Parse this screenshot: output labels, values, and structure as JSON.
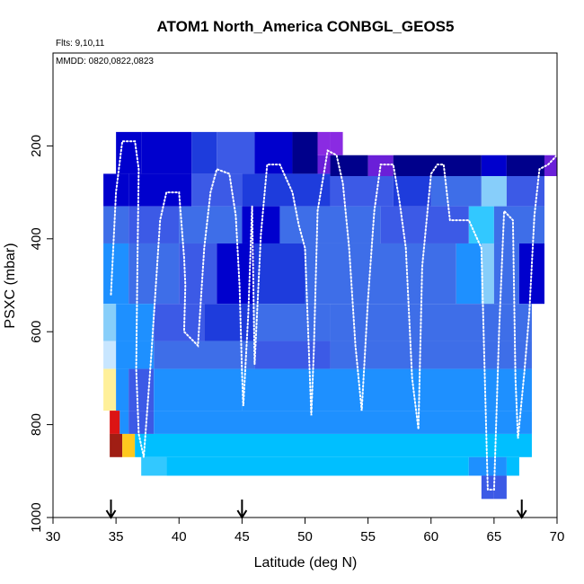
{
  "chart_data": {
    "type": "heatmap",
    "title": "ATOM1 North_America CONBGL_GEOS5",
    "flights_note": "Flts: 9,10,11",
    "dates_note": "MMDD: 0820,0822,0823",
    "xlabel": "Latitude (deg N)",
    "ylabel": "PSXC (mbar)",
    "xlim": [
      30,
      70
    ],
    "ylim": [
      1000,
      0
    ],
    "x_ticks": [
      30,
      35,
      40,
      45,
      50,
      55,
      60,
      65,
      70
    ],
    "y_ticks": [
      200,
      400,
      600,
      800,
      1000
    ],
    "x_tick_labels": [
      "30",
      "35",
      "40",
      "45",
      "50",
      "55",
      "60",
      "65",
      "70"
    ],
    "y_tick_labels": [
      "200",
      "400",
      "600",
      "800",
      "1000"
    ],
    "grid": false,
    "colors": {
      "very_dark_blue": "#00008b",
      "dark_blue": "#0000cd",
      "blue": "#1e3cdc",
      "royal": "#3c5ae6",
      "medium": "#3e6ee8",
      "azure": "#1e90ff",
      "deep_sky": "#00bfff",
      "sky": "#32c8ff",
      "light_sky": "#87cefa",
      "pale_blue": "#c8e6ff",
      "purple": "#6a1fd8",
      "violet": "#8a2be2",
      "light_yellow": "#fff09a",
      "gold": "#ffc81e",
      "red": "#dc1414",
      "dark_red": "#a01e14",
      "track": "#ffffff"
    },
    "cells": [
      {
        "lat": [
          35.0,
          37.0
        ],
        "p": [
          170,
          260
        ],
        "color": "dark_blue"
      },
      {
        "lat": [
          37.0,
          41.0
        ],
        "p": [
          170,
          260
        ],
        "color": "dark_blue"
      },
      {
        "lat": [
          41.0,
          43.0
        ],
        "p": [
          170,
          260
        ],
        "color": "blue"
      },
      {
        "lat": [
          43.0,
          46.0
        ],
        "p": [
          170,
          260
        ],
        "color": "royal"
      },
      {
        "lat": [
          46.0,
          49.0
        ],
        "p": [
          170,
          260
        ],
        "color": "dark_blue"
      },
      {
        "lat": [
          49.0,
          51.0
        ],
        "p": [
          170,
          260
        ],
        "color": "very_dark_blue"
      },
      {
        "lat": [
          51.0,
          52.0
        ],
        "p": [
          170,
          220
        ],
        "color": "violet"
      },
      {
        "lat": [
          51.0,
          52.0
        ],
        "p": [
          220,
          260
        ],
        "color": "purple"
      },
      {
        "lat": [
          52.0,
          53.0
        ],
        "p": [
          170,
          220
        ],
        "color": "violet"
      },
      {
        "lat": [
          52.0,
          55.0
        ],
        "p": [
          220,
          265
        ],
        "color": "very_dark_blue"
      },
      {
        "lat": [
          55.0,
          57.0
        ],
        "p": [
          220,
          265
        ],
        "color": "purple"
      },
      {
        "lat": [
          57.0,
          64.0
        ],
        "p": [
          220,
          265
        ],
        "color": "very_dark_blue"
      },
      {
        "lat": [
          64.0,
          66.0
        ],
        "p": [
          220,
          265
        ],
        "color": "dark_blue"
      },
      {
        "lat": [
          66.0,
          69.0
        ],
        "p": [
          220,
          265
        ],
        "color": "very_dark_blue"
      },
      {
        "lat": [
          69.0,
          70.0
        ],
        "p": [
          220,
          265
        ],
        "color": "purple"
      },
      {
        "lat": [
          34.0,
          36.0
        ],
        "p": [
          260,
          330
        ],
        "color": "dark_blue"
      },
      {
        "lat": [
          36.0,
          41.0
        ],
        "p": [
          260,
          330
        ],
        "color": "dark_blue"
      },
      {
        "lat": [
          41.0,
          45.0
        ],
        "p": [
          260,
          330
        ],
        "color": "royal"
      },
      {
        "lat": [
          45.0,
          52.0
        ],
        "p": [
          260,
          330
        ],
        "color": "blue"
      },
      {
        "lat": [
          52.0,
          57.0
        ],
        "p": [
          265,
          330
        ],
        "color": "royal"
      },
      {
        "lat": [
          57.0,
          60.0
        ],
        "p": [
          265,
          330
        ],
        "color": "blue"
      },
      {
        "lat": [
          60.0,
          64.0
        ],
        "p": [
          265,
          330
        ],
        "color": "medium"
      },
      {
        "lat": [
          64.0,
          66.0
        ],
        "p": [
          265,
          330
        ],
        "color": "light_sky"
      },
      {
        "lat": [
          66.0,
          69.0
        ],
        "p": [
          265,
          330
        ],
        "color": "royal"
      },
      {
        "lat": [
          34.0,
          36.0
        ],
        "p": [
          330,
          410
        ],
        "color": "medium"
      },
      {
        "lat": [
          36.0,
          40.0
        ],
        "p": [
          330,
          410
        ],
        "color": "royal"
      },
      {
        "lat": [
          40.0,
          45.0
        ],
        "p": [
          330,
          410
        ],
        "color": "medium"
      },
      {
        "lat": [
          45.0,
          48.0
        ],
        "p": [
          330,
          410
        ],
        "color": "dark_blue"
      },
      {
        "lat": [
          48.0,
          56.0
        ],
        "p": [
          330,
          410
        ],
        "color": "medium"
      },
      {
        "lat": [
          56.0,
          63.0
        ],
        "p": [
          330,
          410
        ],
        "color": "royal"
      },
      {
        "lat": [
          63.0,
          65.0
        ],
        "p": [
          330,
          410
        ],
        "color": "sky"
      },
      {
        "lat": [
          65.0,
          69.0
        ],
        "p": [
          330,
          410
        ],
        "color": "medium"
      },
      {
        "lat": [
          34.0,
          36.0
        ],
        "p": [
          410,
          540
        ],
        "color": "azure"
      },
      {
        "lat": [
          36.0,
          40.0
        ],
        "p": [
          410,
          540
        ],
        "color": "medium"
      },
      {
        "lat": [
          40.0,
          43.0
        ],
        "p": [
          410,
          540
        ],
        "color": "royal"
      },
      {
        "lat": [
          43.0,
          46.0
        ],
        "p": [
          410,
          540
        ],
        "color": "dark_blue"
      },
      {
        "lat": [
          46.0,
          50.0
        ],
        "p": [
          410,
          540
        ],
        "color": "blue"
      },
      {
        "lat": [
          50.0,
          62.0
        ],
        "p": [
          410,
          540
        ],
        "color": "medium"
      },
      {
        "lat": [
          62.0,
          64.0
        ],
        "p": [
          410,
          540
        ],
        "color": "azure"
      },
      {
        "lat": [
          64.0,
          65.0
        ],
        "p": [
          410,
          540
        ],
        "color": "light_sky"
      },
      {
        "lat": [
          65.0,
          67.0
        ],
        "p": [
          410,
          540
        ],
        "color": "medium"
      },
      {
        "lat": [
          67.0,
          69.0
        ],
        "p": [
          410,
          540
        ],
        "color": "dark_blue"
      },
      {
        "lat": [
          34.0,
          35.0
        ],
        "p": [
          540,
          620
        ],
        "color": "light_sky"
      },
      {
        "lat": [
          35.0,
          38.0
        ],
        "p": [
          540,
          620
        ],
        "color": "azure"
      },
      {
        "lat": [
          38.0,
          42.0
        ],
        "p": [
          540,
          620
        ],
        "color": "royal"
      },
      {
        "lat": [
          42.0,
          46.0
        ],
        "p": [
          540,
          620
        ],
        "color": "blue"
      },
      {
        "lat": [
          46.0,
          52.0
        ],
        "p": [
          540,
          620
        ],
        "color": "medium"
      },
      {
        "lat": [
          52.0,
          68.0
        ],
        "p": [
          540,
          620
        ],
        "color": "medium"
      },
      {
        "lat": [
          34.0,
          35.0
        ],
        "p": [
          620,
          680
        ],
        "color": "pale_blue"
      },
      {
        "lat": [
          35.0,
          38.0
        ],
        "p": [
          620,
          680
        ],
        "color": "azure"
      },
      {
        "lat": [
          38.0,
          46.0
        ],
        "p": [
          620,
          680
        ],
        "color": "medium"
      },
      {
        "lat": [
          46.0,
          52.0
        ],
        "p": [
          620,
          680
        ],
        "color": "royal"
      },
      {
        "lat": [
          52.0,
          68.0
        ],
        "p": [
          620,
          680
        ],
        "color": "medium"
      },
      {
        "lat": [
          34.0,
          35.0
        ],
        "p": [
          680,
          770
        ],
        "color": "light_yellow"
      },
      {
        "lat": [
          35.0,
          36.0
        ],
        "p": [
          680,
          770
        ],
        "color": "azure"
      },
      {
        "lat": [
          36.0,
          38.0
        ],
        "p": [
          680,
          770
        ],
        "color": "royal"
      },
      {
        "lat": [
          38.0,
          45.0
        ],
        "p": [
          680,
          770
        ],
        "color": "azure"
      },
      {
        "lat": [
          45.0,
          68.0
        ],
        "p": [
          680,
          770
        ],
        "color": "azure"
      },
      {
        "lat": [
          34.5,
          35.3
        ],
        "p": [
          770,
          820
        ],
        "color": "red"
      },
      {
        "lat": [
          35.3,
          36.0
        ],
        "p": [
          770,
          820
        ],
        "color": "azure"
      },
      {
        "lat": [
          36.0,
          38.0
        ],
        "p": [
          770,
          820
        ],
        "color": "royal"
      },
      {
        "lat": [
          38.0,
          68.0
        ],
        "p": [
          770,
          820
        ],
        "color": "azure"
      },
      {
        "lat": [
          34.5,
          35.5
        ],
        "p": [
          820,
          870
        ],
        "color": "dark_red"
      },
      {
        "lat": [
          35.5,
          36.5
        ],
        "p": [
          820,
          870
        ],
        "color": "gold"
      },
      {
        "lat": [
          36.5,
          68.0
        ],
        "p": [
          820,
          870
        ],
        "color": "deep_sky"
      },
      {
        "lat": [
          37.0,
          39.0
        ],
        "p": [
          870,
          910
        ],
        "color": "sky"
      },
      {
        "lat": [
          39.0,
          63.0
        ],
        "p": [
          870,
          910
        ],
        "color": "deep_sky"
      },
      {
        "lat": [
          63.0,
          66.0
        ],
        "p": [
          870,
          910
        ],
        "color": "azure"
      },
      {
        "lat": [
          66.0,
          67.0
        ],
        "p": [
          870,
          910
        ],
        "color": "deep_sky"
      },
      {
        "lat": [
          64.0,
          65.0
        ],
        "p": [
          910,
          960
        ],
        "color": "royal"
      },
      {
        "lat": [
          65.0,
          66.0
        ],
        "p": [
          910,
          960
        ],
        "color": "royal"
      }
    ],
    "track": [
      [
        34.6,
        520
      ],
      [
        35.0,
        300
      ],
      [
        35.5,
        190
      ],
      [
        36.5,
        190
      ],
      [
        36.8,
        250
      ],
      [
        36.7,
        450
      ],
      [
        36.6,
        680
      ],
      [
        36.8,
        820
      ],
      [
        37.2,
        870
      ],
      [
        37.8,
        650
      ],
      [
        38.5,
        360
      ],
      [
        39.0,
        300
      ],
      [
        40.0,
        300
      ],
      [
        40.4,
        440
      ],
      [
        40.5,
        500
      ],
      [
        40.4,
        600
      ],
      [
        41.5,
        630
      ],
      [
        42.0,
        420
      ],
      [
        42.5,
        300
      ],
      [
        43.0,
        250
      ],
      [
        44.0,
        260
      ],
      [
        44.5,
        350
      ],
      [
        44.8,
        500
      ],
      [
        45.0,
        690
      ],
      [
        45.1,
        760
      ],
      [
        45.5,
        560
      ],
      [
        45.8,
        330
      ],
      [
        46.0,
        670
      ],
      [
        46.5,
        390
      ],
      [
        47.0,
        240
      ],
      [
        48.0,
        240
      ],
      [
        49.0,
        300
      ],
      [
        49.5,
        370
      ],
      [
        50.0,
        420
      ],
      [
        50.5,
        780
      ],
      [
        50.7,
        640
      ],
      [
        51.0,
        340
      ],
      [
        51.8,
        210
      ],
      [
        52.5,
        220
      ],
      [
        53.0,
        280
      ],
      [
        53.5,
        420
      ],
      [
        54.0,
        630
      ],
      [
        54.5,
        770
      ],
      [
        55.0,
        530
      ],
      [
        55.5,
        340
      ],
      [
        56.0,
        240
      ],
      [
        57.0,
        240
      ],
      [
        57.5,
        320
      ],
      [
        58.0,
        420
      ],
      [
        58.5,
        700
      ],
      [
        59.0,
        810
      ],
      [
        59.3,
        460
      ],
      [
        60.0,
        260
      ],
      [
        60.5,
        240
      ],
      [
        61.0,
        240
      ],
      [
        61.5,
        360
      ],
      [
        63.0,
        360
      ],
      [
        64.0,
        420
      ],
      [
        64.5,
        940
      ],
      [
        65.0,
        940
      ],
      [
        65.4,
        600
      ],
      [
        65.8,
        340
      ],
      [
        66.5,
        360
      ],
      [
        66.7,
        700
      ],
      [
        66.9,
        830
      ],
      [
        67.4,
        690
      ],
      [
        67.8,
        560
      ],
      [
        68.2,
        350
      ],
      [
        68.6,
        250
      ],
      [
        69.3,
        240
      ],
      [
        70.0,
        220
      ]
    ],
    "arrows_lat": [
      34.6,
      45.0,
      67.2
    ]
  }
}
